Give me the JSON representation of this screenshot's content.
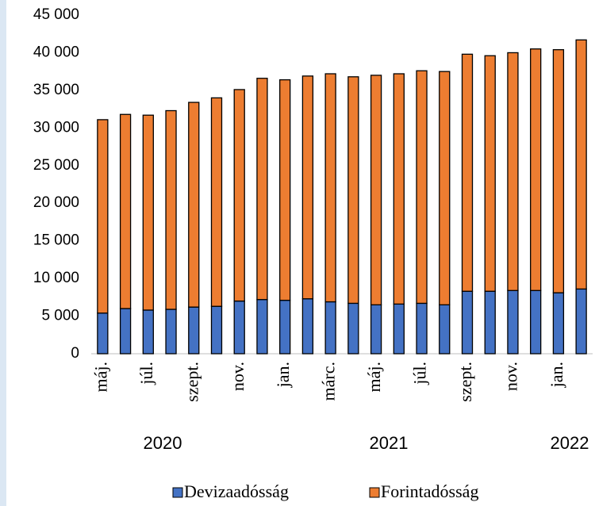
{
  "chart_data": {
    "type": "bar",
    "stacked": true,
    "categories": [
      "máj.",
      null,
      "júl.",
      null,
      "szept.",
      null,
      "nov.",
      null,
      "jan.",
      null,
      "márc.",
      null,
      "máj.",
      null,
      "júl.",
      null,
      "szept.",
      null,
      "nov.",
      null,
      "jan.",
      null
    ],
    "year_labels": [
      "2020",
      "2021",
      "2022"
    ],
    "series": [
      {
        "name": "Devizaadósság",
        "color": "#4472c4",
        "values": [
          5400,
          6000,
          5800,
          5900,
          6200,
          6300,
          7000,
          7200,
          7100,
          7300,
          6900,
          6700,
          6500,
          6600,
          6700,
          6500,
          8300,
          8300,
          8400,
          8400,
          8100,
          8600
        ]
      },
      {
        "name": "Forintadósság",
        "color": "#ed7d31",
        "values": [
          25700,
          25800,
          25900,
          26400,
          27200,
          27700,
          28100,
          29400,
          29300,
          29600,
          30300,
          30100,
          30500,
          30600,
          30900,
          31000,
          31500,
          31300,
          31600,
          32100,
          32300,
          33100
        ]
      }
    ],
    "ylim": [
      0,
      45000
    ],
    "yticks": [
      0,
      {
        "value": 5000,
        "label": "5 000"
      },
      {
        "value": 10000,
        "label": "10 000"
      },
      {
        "value": 15000,
        "label": "15 000"
      },
      {
        "value": 20000,
        "label": "20 000"
      },
      {
        "value": 25000,
        "label": "25 000"
      },
      {
        "value": 30000,
        "label": "30 000"
      },
      {
        "value": 35000,
        "label": "35 000"
      },
      {
        "value": 40000,
        "label": "40 000"
      },
      {
        "value": 45000,
        "label": "45 000"
      }
    ],
    "legend": "bottom"
  }
}
